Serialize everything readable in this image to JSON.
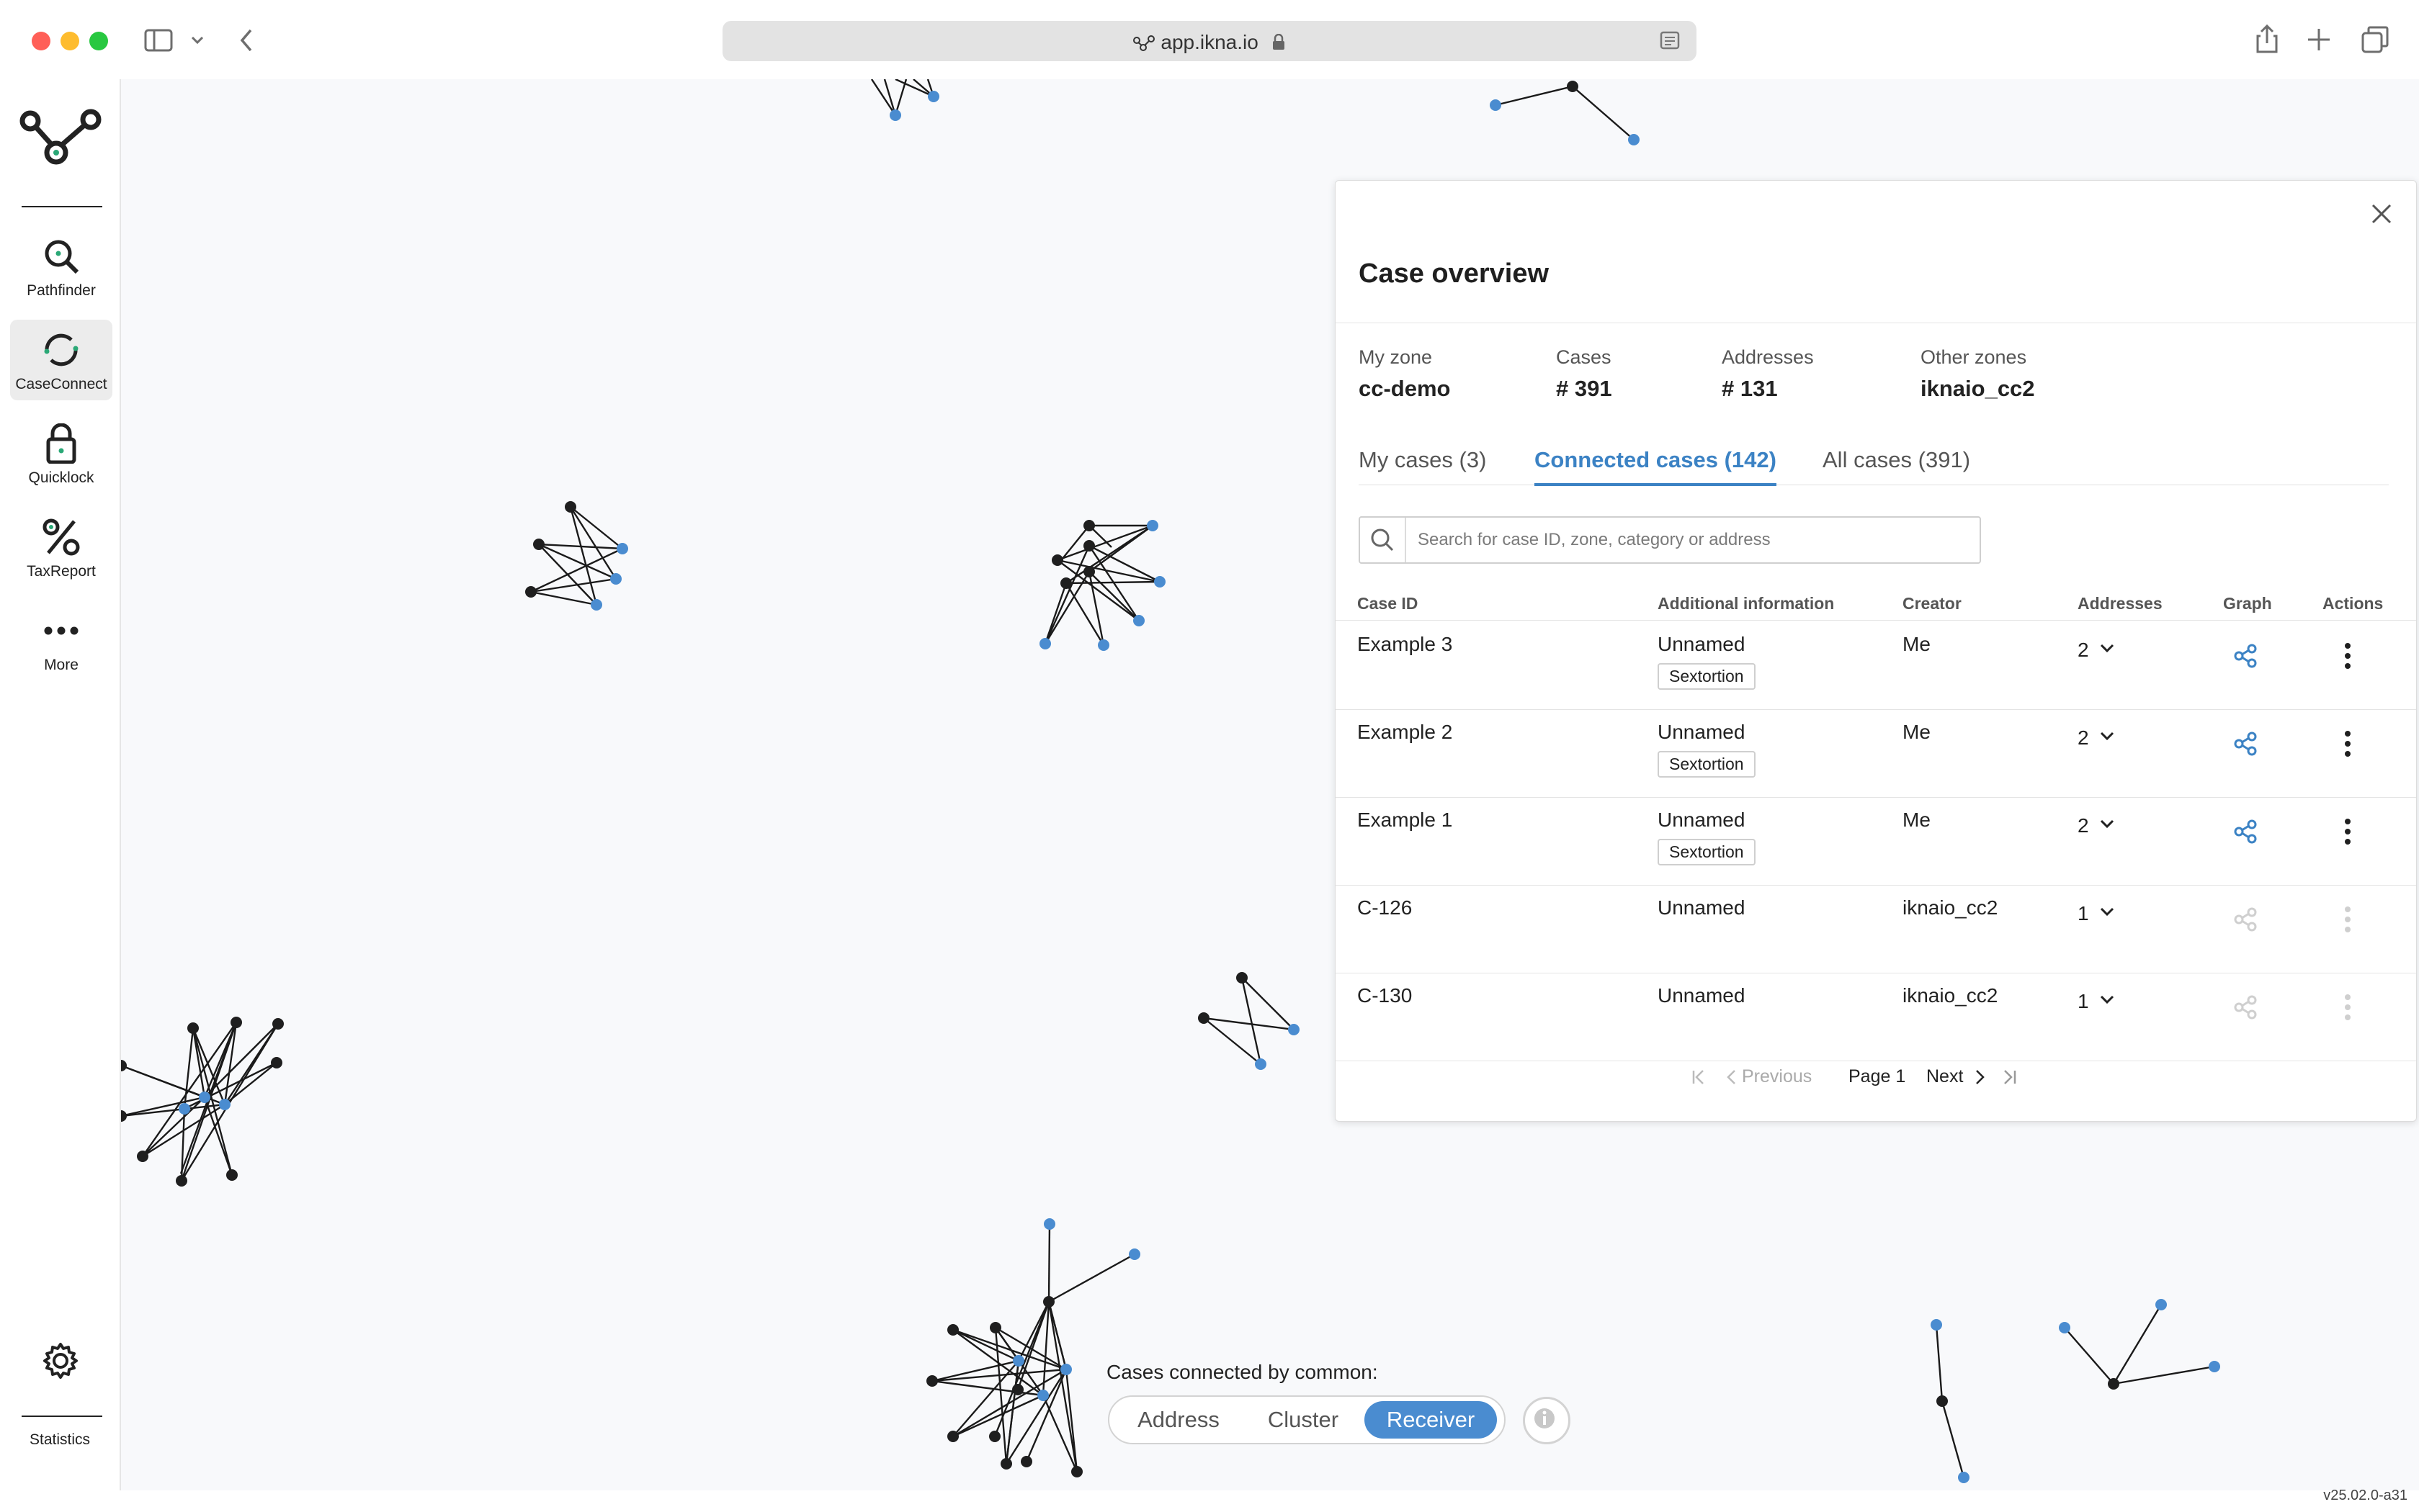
{
  "browser": {
    "url": "app.ikna.io"
  },
  "sidebar": {
    "items": [
      {
        "label": "Pathfinder",
        "icon": "magnifier-icon"
      },
      {
        "label": "CaseConnect",
        "icon": "caseconnect-icon"
      },
      {
        "label": "Quicklock",
        "icon": "lock-icon"
      },
      {
        "label": "TaxReport",
        "icon": "percent-icon"
      },
      {
        "label": "More",
        "icon": "more-dots-icon"
      }
    ],
    "bottom_label": "Statistics"
  },
  "panel": {
    "title": "Case overview",
    "stats": [
      {
        "label": "My zone",
        "value": "cc-demo"
      },
      {
        "label": "Cases",
        "value": "# 391"
      },
      {
        "label": "Addresses",
        "value": "# 131"
      },
      {
        "label": "Other zones",
        "value": "iknaio_cc2"
      }
    ],
    "tabs": [
      {
        "label": "My cases (3)",
        "active": false
      },
      {
        "label": "Connected cases (142)",
        "active": true
      },
      {
        "label": "All cases (391)",
        "active": false
      }
    ],
    "search": {
      "placeholder": "Search for case ID, zone, category or address",
      "value": ""
    },
    "columns": [
      "Case ID",
      "Additional information",
      "Creator",
      "Addresses",
      "Graph",
      "Actions"
    ],
    "rows": [
      {
        "case_id": "Example 3",
        "info": "Unnamed",
        "tag": "Sextortion",
        "creator": "Me",
        "addresses": "2",
        "enabled": true
      },
      {
        "case_id": "Example 2",
        "info": "Unnamed",
        "tag": "Sextortion",
        "creator": "Me",
        "addresses": "2",
        "enabled": true
      },
      {
        "case_id": "Example 1",
        "info": "Unnamed",
        "tag": "Sextortion",
        "creator": "Me",
        "addresses": "2",
        "enabled": true
      },
      {
        "case_id": "C-126",
        "info": "Unnamed",
        "tag": "",
        "creator": "iknaio_cc2",
        "addresses": "1",
        "enabled": false
      },
      {
        "case_id": "C-130",
        "info": "Unnamed",
        "tag": "",
        "creator": "iknaio_cc2",
        "addresses": "1",
        "enabled": false
      }
    ],
    "pagination": {
      "previous": "Previous",
      "page": "Page 1",
      "next": "Next"
    }
  },
  "common": {
    "label": "Cases connected by common:",
    "options": [
      "Address",
      "Cluster",
      "Receiver"
    ],
    "selected": "Receiver"
  },
  "version": "v25.02.0-a31",
  "colors": {
    "accent": "#3b82c4",
    "node_blue": "#4a8cd0",
    "node_dark": "#222222"
  }
}
